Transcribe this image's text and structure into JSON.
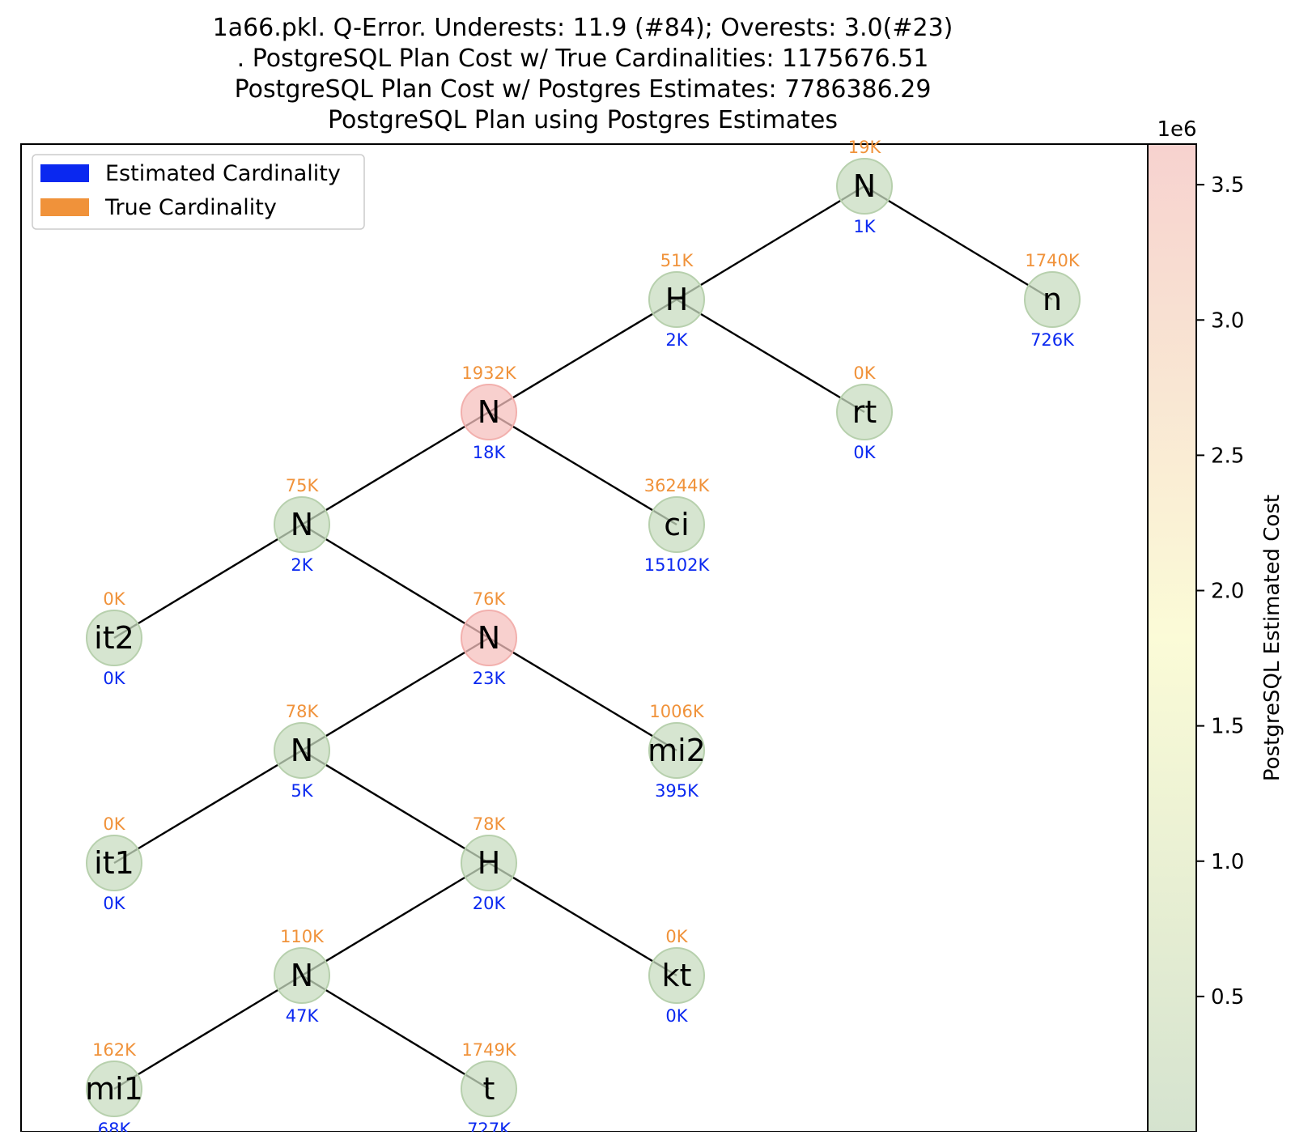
{
  "title_lines": [
    "1a66.pkl. Q-Error. Underests: 11.9 (#84); Overests: 3.0(#23)",
    ". PostgreSQL Plan Cost w/ True Cardinalities: 1175676.51",
    "PostgreSQL Plan Cost w/ Postgres Estimates: 7786386.29",
    "PostgreSQL Plan using Postgres Estimates"
  ],
  "legend": [
    {
      "label": "Estimated Cardinality",
      "color": "#0a28f0"
    },
    {
      "label": "True Cardinality",
      "color": "#f0923a"
    }
  ],
  "colorbar": {
    "label": "PostgreSQL Estimated Cost",
    "exponent": "1e6",
    "ticks": [
      "0.5",
      "1.0",
      "1.5",
      "2.0",
      "2.5",
      "3.0",
      "3.5"
    ],
    "tick_values": [
      0.5,
      1.0,
      1.5,
      2.0,
      2.5,
      3.0,
      3.5
    ],
    "min": 0.0,
    "max": 3.65,
    "colors": {
      "low": "#d5e3cf",
      "mid": "#fbfbd7",
      "high": "#f7d2cf"
    }
  },
  "colors": {
    "estimated": "#0a28f0",
    "true": "#f0923a",
    "node_green": "#c8dcc0",
    "node_red": "#f5c0be",
    "edge": "#000000"
  },
  "nodes": [
    {
      "id": "root",
      "label": "N",
      "true": "19K",
      "est": "1K",
      "hot": false
    },
    {
      "id": "h1",
      "label": "H",
      "true": "51K",
      "est": "2K",
      "hot": false
    },
    {
      "id": "n",
      "label": "n",
      "true": "1740K",
      "est": "726K",
      "hot": false
    },
    {
      "id": "n2",
      "label": "N",
      "true": "1932K",
      "est": "18K",
      "hot": true
    },
    {
      "id": "rt",
      "label": "rt",
      "true": "0K",
      "est": "0K",
      "hot": false
    },
    {
      "id": "n3",
      "label": "N",
      "true": "75K",
      "est": "2K",
      "hot": false
    },
    {
      "id": "ci",
      "label": "ci",
      "true": "36244K",
      "est": "15102K",
      "hot": false
    },
    {
      "id": "it2",
      "label": "it2",
      "true": "0K",
      "est": "0K",
      "hot": false
    },
    {
      "id": "n4",
      "label": "N",
      "true": "76K",
      "est": "23K",
      "hot": true
    },
    {
      "id": "n5",
      "label": "N",
      "true": "78K",
      "est": "5K",
      "hot": false
    },
    {
      "id": "mi2",
      "label": "mi2",
      "true": "1006K",
      "est": "395K",
      "hot": false
    },
    {
      "id": "it1",
      "label": "it1",
      "true": "0K",
      "est": "0K",
      "hot": false
    },
    {
      "id": "h2",
      "label": "H",
      "true": "78K",
      "est": "20K",
      "hot": false
    },
    {
      "id": "n6",
      "label": "N",
      "true": "110K",
      "est": "47K",
      "hot": false
    },
    {
      "id": "kt",
      "label": "kt",
      "true": "0K",
      "est": "0K",
      "hot": false
    },
    {
      "id": "mi1",
      "label": "mi1",
      "true": "162K",
      "est": "68K",
      "hot": false
    },
    {
      "id": "t",
      "label": "t",
      "true": "1749K",
      "est": "727K",
      "hot": false
    }
  ],
  "edges": [
    [
      "root",
      "h1"
    ],
    [
      "root",
      "n"
    ],
    [
      "h1",
      "n2"
    ],
    [
      "h1",
      "rt"
    ],
    [
      "n2",
      "n3"
    ],
    [
      "n2",
      "ci"
    ],
    [
      "n3",
      "it2"
    ],
    [
      "n3",
      "n4"
    ],
    [
      "n4",
      "n5"
    ],
    [
      "n4",
      "mi2"
    ],
    [
      "n5",
      "it1"
    ],
    [
      "n5",
      "h2"
    ],
    [
      "h2",
      "n6"
    ],
    [
      "h2",
      "kt"
    ],
    [
      "n6",
      "mi1"
    ],
    [
      "n6",
      "t"
    ]
  ]
}
